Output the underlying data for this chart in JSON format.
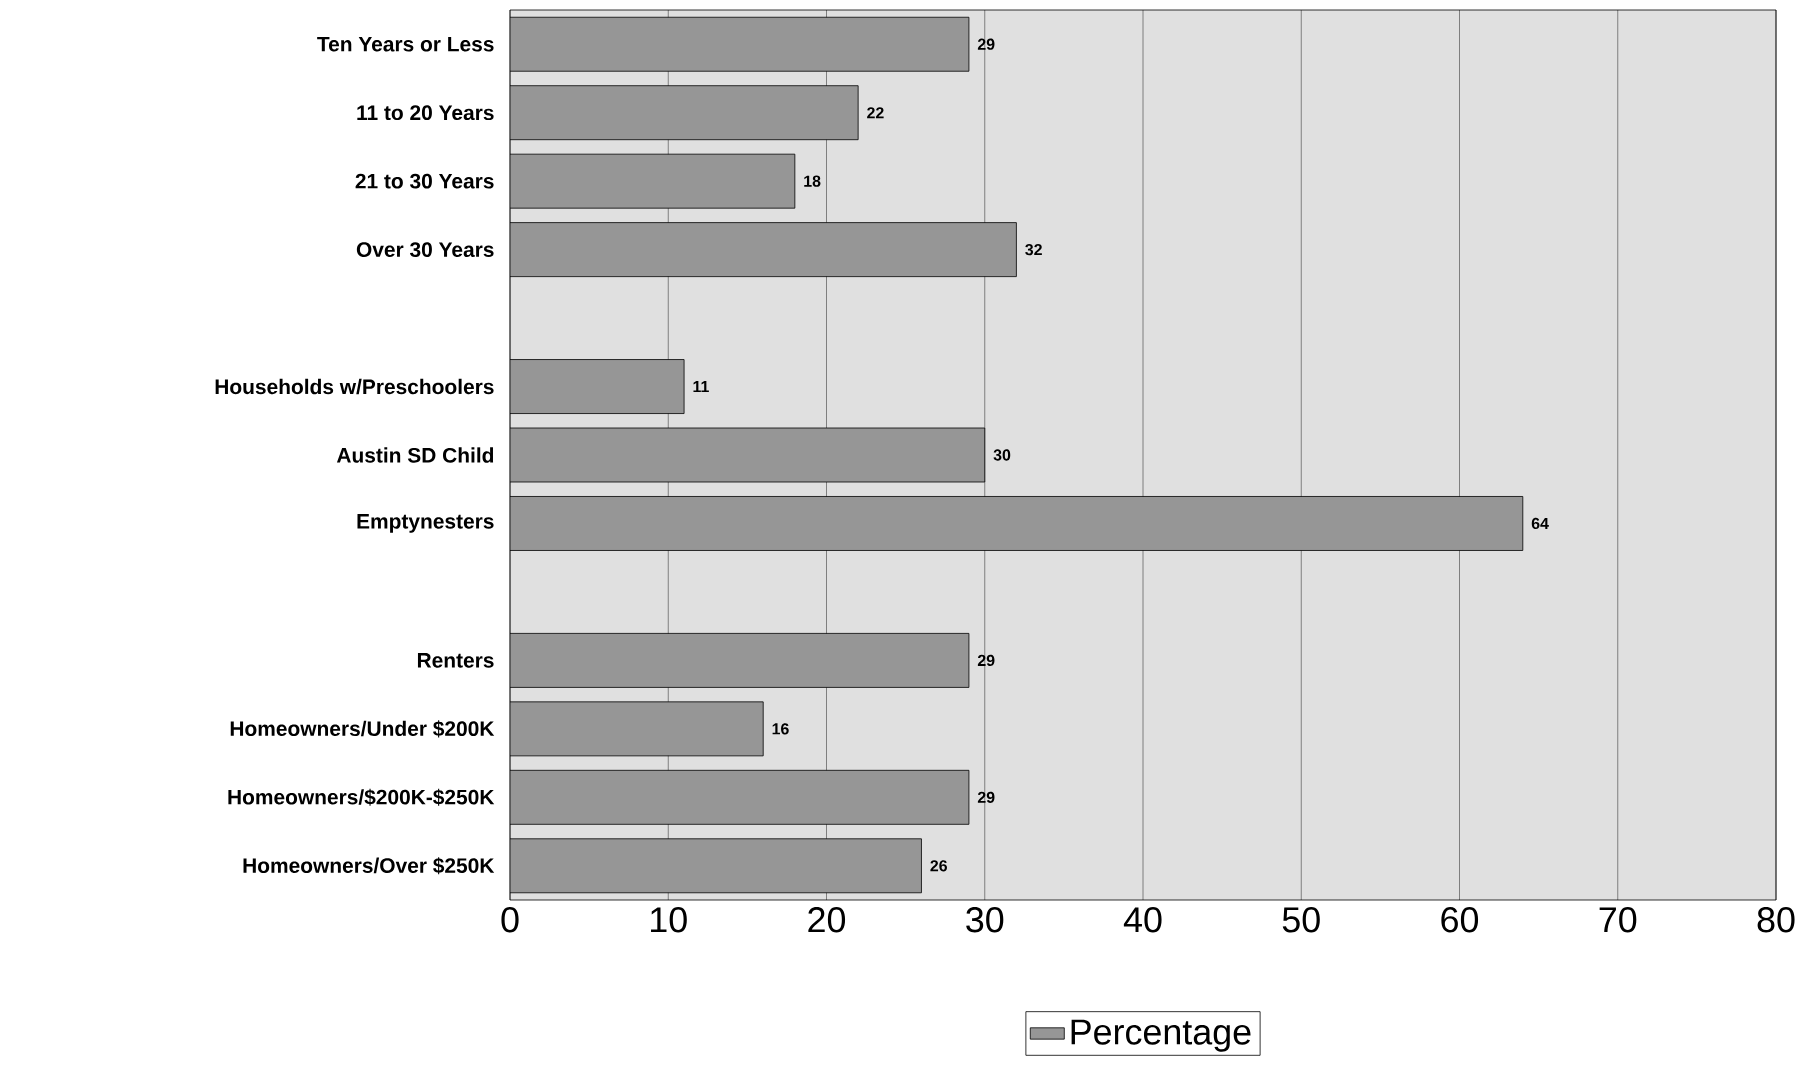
{
  "chart_data": {
    "type": "bar",
    "orientation": "horizontal",
    "categories": [
      "Ten Years or Less",
      "11 to 20 Years",
      "21 to 30 Years",
      "Over 30 Years",
      null,
      "Households w/Preschoolers",
      "Austin SD Child",
      "Emptynesters",
      null,
      "Renters",
      "Homeowners/Under $200K",
      "Homeowners/$200K-$250K",
      "Homeowners/Over $250K"
    ],
    "series": [
      {
        "name": "Percentage",
        "color": "#969696",
        "values": [
          29,
          22,
          18,
          32,
          null,
          11,
          30,
          64,
          null,
          29,
          16,
          29,
          26
        ]
      }
    ],
    "xlim": [
      0,
      80
    ],
    "xticks": [
      0,
      10,
      20,
      30,
      40,
      50,
      60,
      70,
      80
    ],
    "grid": "x",
    "legend": "bottom",
    "data_labels": true
  }
}
